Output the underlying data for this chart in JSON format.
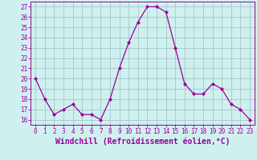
{
  "x": [
    0,
    1,
    2,
    3,
    4,
    5,
    6,
    7,
    8,
    9,
    10,
    11,
    12,
    13,
    14,
    15,
    16,
    17,
    18,
    19,
    20,
    21,
    22,
    23
  ],
  "y": [
    20,
    18,
    16.5,
    17,
    17.5,
    16.5,
    16.5,
    16,
    18,
    21,
    23.5,
    25.5,
    27,
    27,
    26.5,
    23,
    19.5,
    18.5,
    18.5,
    19.5,
    19,
    17.5,
    17,
    16
  ],
  "line_color": "#990099",
  "marker": "D",
  "marker_size": 2.0,
  "bg_color": "#d0f0f0",
  "grid_color": "#aacccc",
  "xlabel": "Windchill (Refroidissement éolien,°C)",
  "xlabel_fontsize": 7,
  "yticks": [
    16,
    17,
    18,
    19,
    20,
    21,
    22,
    23,
    24,
    25,
    26,
    27
  ],
  "xticks": [
    0,
    1,
    2,
    3,
    4,
    5,
    6,
    7,
    8,
    9,
    10,
    11,
    12,
    13,
    14,
    15,
    16,
    17,
    18,
    19,
    20,
    21,
    22,
    23
  ],
  "xtick_labels": [
    "0",
    "1",
    "2",
    "3",
    "4",
    "5",
    "6",
    "7",
    "8",
    "9",
    "10",
    "11",
    "12",
    "13",
    "14",
    "15",
    "16",
    "17",
    "18",
    "19",
    "20",
    "21",
    "22",
    "23"
  ],
  "ylim": [
    15.5,
    27.5
  ],
  "xlim": [
    -0.5,
    23.5
  ],
  "tick_fontsize": 5.5
}
